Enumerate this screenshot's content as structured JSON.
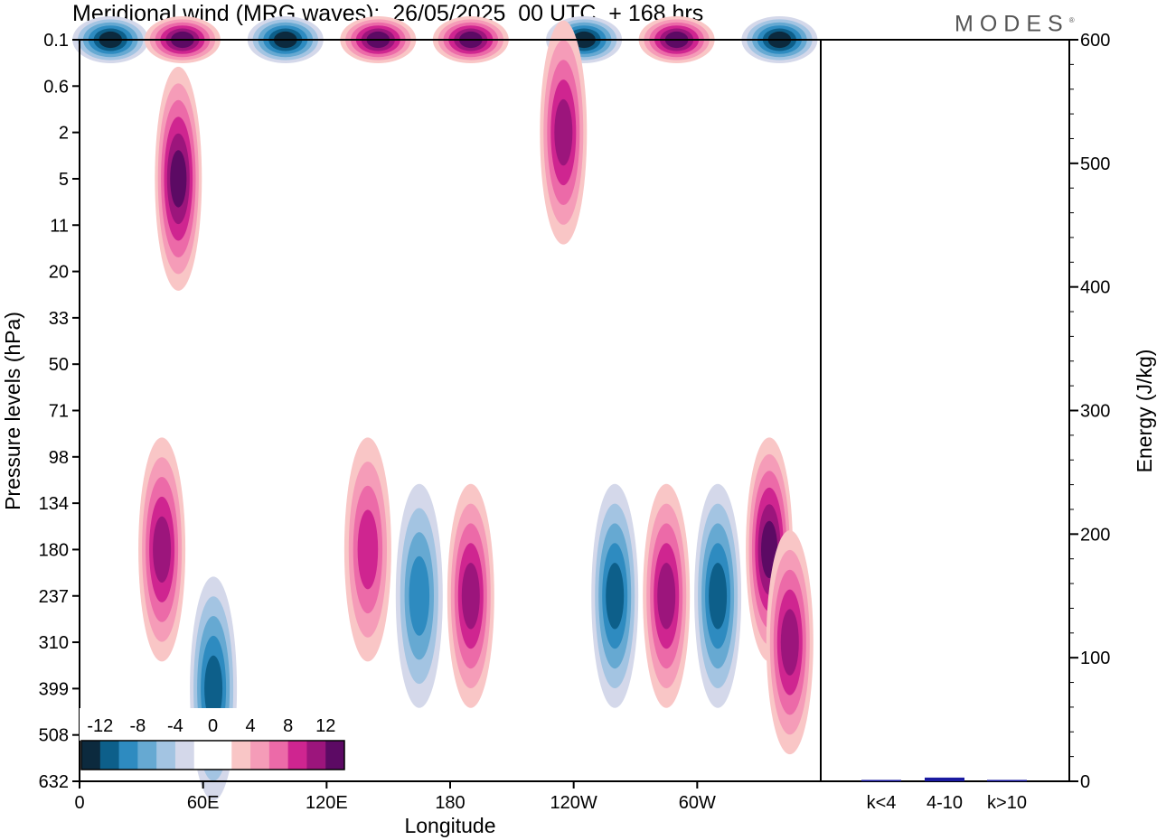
{
  "header": {
    "title": "Meridional wind (MRG waves):  26/05/2025  00 UTC  + 168 hrs",
    "brand": "MODES",
    "brand_mark": "®"
  },
  "chart_data": [
    {
      "type": "heatmap",
      "description_kind": "filled contour (longitude-pressure section)",
      "xlabel": "Longitude",
      "ylabel": "Pressure levels (hPa)",
      "x_ticks": [
        "0",
        "60E",
        "120E",
        "180",
        "120W",
        "60W"
      ],
      "x_tick_values": [
        0,
        60,
        120,
        180,
        240,
        300
      ],
      "xlim": [
        0,
        360
      ],
      "y_ticks": [
        "0.1",
        "0.6",
        "2",
        "5",
        "11",
        "20",
        "33",
        "50",
        "71",
        "98",
        "134",
        "180",
        "237",
        "310",
        "399",
        "508",
        "632"
      ],
      "grid": false,
      "colorbar": {
        "tick_labels": [
          "-12",
          "-8",
          "-4",
          "0",
          "4",
          "8",
          "12"
        ],
        "levels": [
          -14,
          -12,
          -10,
          -8,
          -6,
          -4,
          -2,
          0,
          2,
          4,
          6,
          8,
          10,
          12,
          14
        ],
        "colors": [
          "#0c2a3e",
          "#0d5f8a",
          "#2e8bc0",
          "#66a9d2",
          "#a3c4e2",
          "#d4d8ea",
          "#ffffff",
          "#ffffff",
          "#f9c6c6",
          "#f59cb8",
          "#ec6aa8",
          "#cf2590",
          "#9c157c",
          "#5c0a64"
        ],
        "placement": "bottom-left"
      },
      "approx_features": [
        {
          "lon": 15,
          "level": "0.1",
          "v": -14
        },
        {
          "lon": 50,
          "level": "0.1",
          "v": 14
        },
        {
          "lon": 100,
          "level": "0.1",
          "v": -12
        },
        {
          "lon": 145,
          "level": "0.1",
          "v": 12
        },
        {
          "lon": 190,
          "level": "0.1",
          "v": 14
        },
        {
          "lon": 245,
          "level": "0.1",
          "v": -14
        },
        {
          "lon": 290,
          "level": "0.1",
          "v": 12
        },
        {
          "lon": 340,
          "level": "0.1",
          "v": -12
        },
        {
          "lon": 235,
          "level": "2",
          "v": 10
        },
        {
          "lon": 48,
          "level": "5",
          "v": 12
        },
        {
          "lon": 40,
          "level": "180",
          "v": 10
        },
        {
          "lon": 65,
          "level": "399",
          "v": -10
        },
        {
          "lon": 140,
          "level": "180",
          "v": 8
        },
        {
          "lon": 165,
          "level": "237",
          "v": -8
        },
        {
          "lon": 190,
          "level": "237",
          "v": 10
        },
        {
          "lon": 260,
          "level": "237",
          "v": -10
        },
        {
          "lon": 285,
          "level": "237",
          "v": 10
        },
        {
          "lon": 310,
          "level": "237",
          "v": -10
        },
        {
          "lon": 335,
          "level": "180",
          "v": 12
        },
        {
          "lon": 345,
          "level": "310",
          "v": 10
        }
      ]
    },
    {
      "type": "bar",
      "categories": [
        "k<4",
        "4-10",
        "k>10"
      ],
      "values": [
        0,
        3,
        0
      ],
      "ylabel": "Energy (J/kg)",
      "ylim": [
        0,
        600
      ],
      "y_ticks": [
        "0",
        "100",
        "200",
        "300",
        "400",
        "500",
        "600"
      ],
      "bar_color": "#1a1aa0"
    }
  ]
}
